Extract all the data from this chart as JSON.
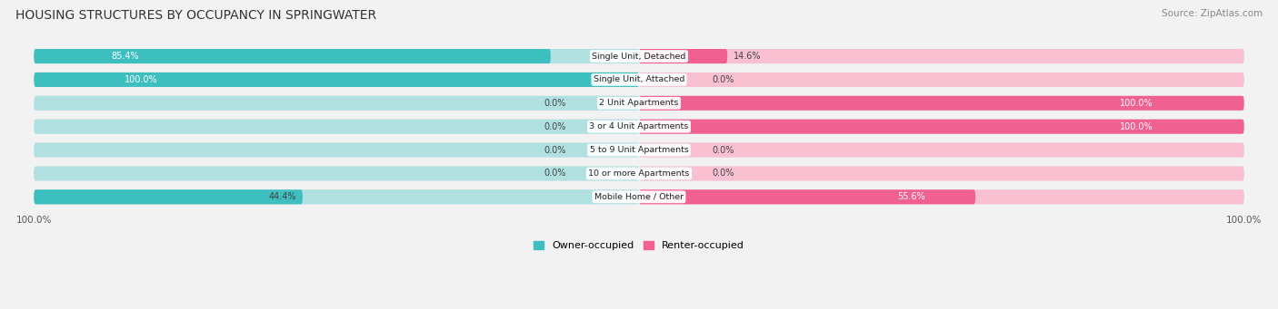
{
  "title": "HOUSING STRUCTURES BY OCCUPANCY IN SPRINGWATER",
  "source": "Source: ZipAtlas.com",
  "categories": [
    "Single Unit, Detached",
    "Single Unit, Attached",
    "2 Unit Apartments",
    "3 or 4 Unit Apartments",
    "5 to 9 Unit Apartments",
    "10 or more Apartments",
    "Mobile Home / Other"
  ],
  "owner_pct": [
    85.4,
    100.0,
    0.0,
    0.0,
    0.0,
    0.0,
    44.4
  ],
  "renter_pct": [
    14.6,
    0.0,
    100.0,
    100.0,
    0.0,
    0.0,
    55.6
  ],
  "owner_color": "#3DBFBF",
  "renter_color": "#F06090",
  "owner_light": "#B0E0E0",
  "renter_light": "#F8C0D0",
  "row_bg_color": "#E8E8E8",
  "fig_bg_color": "#F2F2F2",
  "legend_owner": "Owner-occupied",
  "legend_renter": "Renter-occupied",
  "axis_label_left": "100.0%",
  "axis_label_right": "100.0%"
}
